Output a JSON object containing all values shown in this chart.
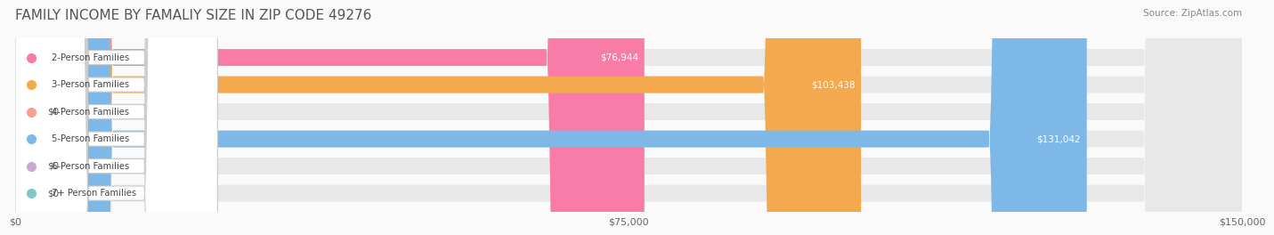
{
  "title": "FAMILY INCOME BY FAMALIY SIZE IN ZIP CODE 49276",
  "source": "Source: ZipAtlas.com",
  "categories": [
    "2-Person Families",
    "3-Person Families",
    "4-Person Families",
    "5-Person Families",
    "6-Person Families",
    "7+ Person Families"
  ],
  "values": [
    76944,
    103438,
    0,
    131042,
    0,
    0
  ],
  "bar_colors": [
    "#F97BA8",
    "#F5A94E",
    "#F5A090",
    "#7EB8E8",
    "#C9A8D8",
    "#7EC8C8"
  ],
  "label_colors": [
    "#555555",
    "#ffffff",
    "#555555",
    "#ffffff",
    "#555555",
    "#555555"
  ],
  "dot_colors": [
    "#F97BA8",
    "#F5A94E",
    "#F5A090",
    "#7EB8E8",
    "#C9A8D8",
    "#7EC8C8"
  ],
  "bg_bar_color": "#F0F0F0",
  "label_box_color": "#FFFFFF",
  "xlim": [
    0,
    150000
  ],
  "xticks": [
    0,
    75000,
    150000
  ],
  "xtick_labels": [
    "$0",
    "$75,000",
    "$150,000"
  ],
  "background_color": "#FAFAFA",
  "title_fontsize": 11,
  "bar_height": 0.62,
  "value_labels": [
    "$76,944",
    "$103,438",
    "$0",
    "$131,042",
    "$0",
    "$0"
  ]
}
